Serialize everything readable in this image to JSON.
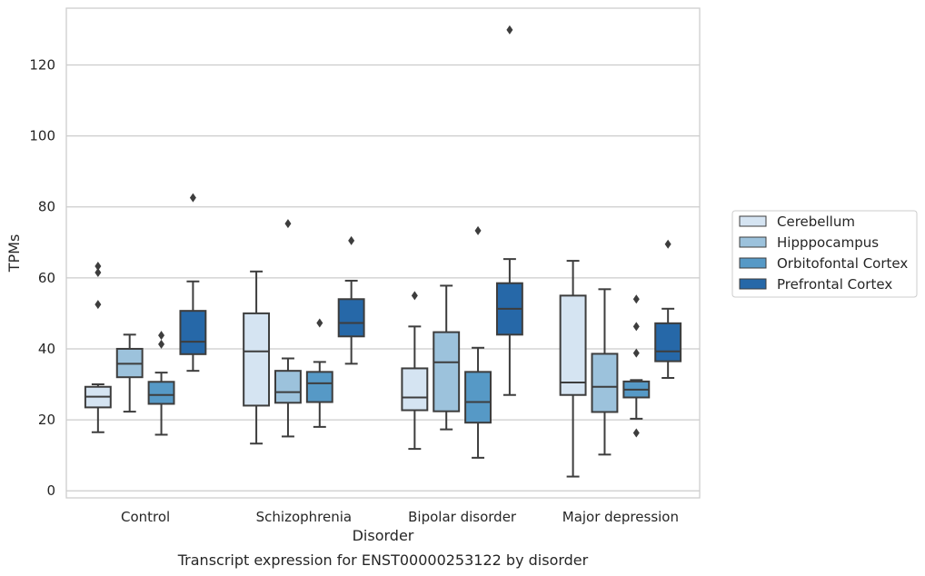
{
  "chart_data": {
    "type": "box",
    "title": "Transcript expression for ENST00000253122 by disorder",
    "xlabel": "Disorder",
    "ylabel": "TPMs",
    "categories": [
      "Control",
      "Schizophrenia",
      "Bipolar disorder",
      "Major depression"
    ],
    "ylim": [
      -2,
      136
    ],
    "yticks": [
      0,
      20,
      40,
      60,
      80,
      100,
      120
    ],
    "grid": "horizontal",
    "legend_position": "right",
    "series": [
      {
        "name": "Cerebellum",
        "color": "#d5e4f2",
        "boxes": [
          {
            "whislo": 16.5,
            "q1": 23.5,
            "med": 26.5,
            "q3": 29.3,
            "whishi": 30.0,
            "fliers": [
              52.5,
              61.5,
              63.3
            ]
          },
          {
            "whislo": 13.3,
            "q1": 24.0,
            "med": 39.3,
            "q3": 50.0,
            "whishi": 61.8,
            "fliers": []
          },
          {
            "whislo": 11.8,
            "q1": 22.7,
            "med": 26.3,
            "q3": 34.5,
            "whishi": 46.3,
            "fliers": [
              55.0
            ]
          },
          {
            "whislo": 4.0,
            "q1": 27.0,
            "med": 30.5,
            "q3": 55.0,
            "whishi": 64.8,
            "fliers": []
          }
        ]
      },
      {
        "name": "Hipppocampus",
        "color": "#9cc2dc",
        "boxes": [
          {
            "whislo": 22.3,
            "q1": 32.0,
            "med": 35.8,
            "q3": 40.0,
            "whishi": 44.0,
            "fliers": []
          },
          {
            "whislo": 15.3,
            "q1": 24.8,
            "med": 27.8,
            "q3": 33.8,
            "whishi": 37.3,
            "fliers": [
              75.3
            ]
          },
          {
            "whislo": 17.3,
            "q1": 22.4,
            "med": 36.2,
            "q3": 44.7,
            "whishi": 57.8,
            "fliers": []
          },
          {
            "whislo": 10.2,
            "q1": 22.2,
            "med": 29.3,
            "q3": 38.6,
            "whishi": 56.8,
            "fliers": []
          }
        ]
      },
      {
        "name": "Orbitofontal Cortex",
        "color": "#5699c6",
        "boxes": [
          {
            "whislo": 15.8,
            "q1": 24.5,
            "med": 27.0,
            "q3": 30.7,
            "whishi": 33.3,
            "fliers": [
              41.3,
              43.8
            ]
          },
          {
            "whislo": 18.0,
            "q1": 25.0,
            "med": 30.3,
            "q3": 33.5,
            "whishi": 36.3,
            "fliers": [
              47.3
            ]
          },
          {
            "whislo": 9.3,
            "q1": 19.2,
            "med": 25.0,
            "q3": 33.5,
            "whishi": 40.3,
            "fliers": [
              73.3
            ]
          },
          {
            "whislo": 20.3,
            "q1": 26.3,
            "med": 28.5,
            "q3": 30.8,
            "whishi": 31.2,
            "fliers": [
              16.3,
              38.8,
              46.3,
              54.0
            ]
          }
        ]
      },
      {
        "name": "Prefrontal Cortex",
        "color": "#2668a8",
        "boxes": [
          {
            "whislo": 33.8,
            "q1": 38.5,
            "med": 42.0,
            "q3": 50.7,
            "whishi": 59.0,
            "fliers": [
              82.6
            ]
          },
          {
            "whislo": 35.8,
            "q1": 43.5,
            "med": 47.3,
            "q3": 54.0,
            "whishi": 59.2,
            "fliers": [
              70.5
            ]
          },
          {
            "whislo": 27.0,
            "q1": 44.0,
            "med": 51.3,
            "q3": 58.5,
            "whishi": 65.3,
            "fliers": [
              129.9
            ]
          },
          {
            "whislo": 31.8,
            "q1": 36.5,
            "med": 39.3,
            "q3": 47.2,
            "whishi": 51.3,
            "fliers": [
              69.5
            ]
          }
        ]
      }
    ]
  }
}
